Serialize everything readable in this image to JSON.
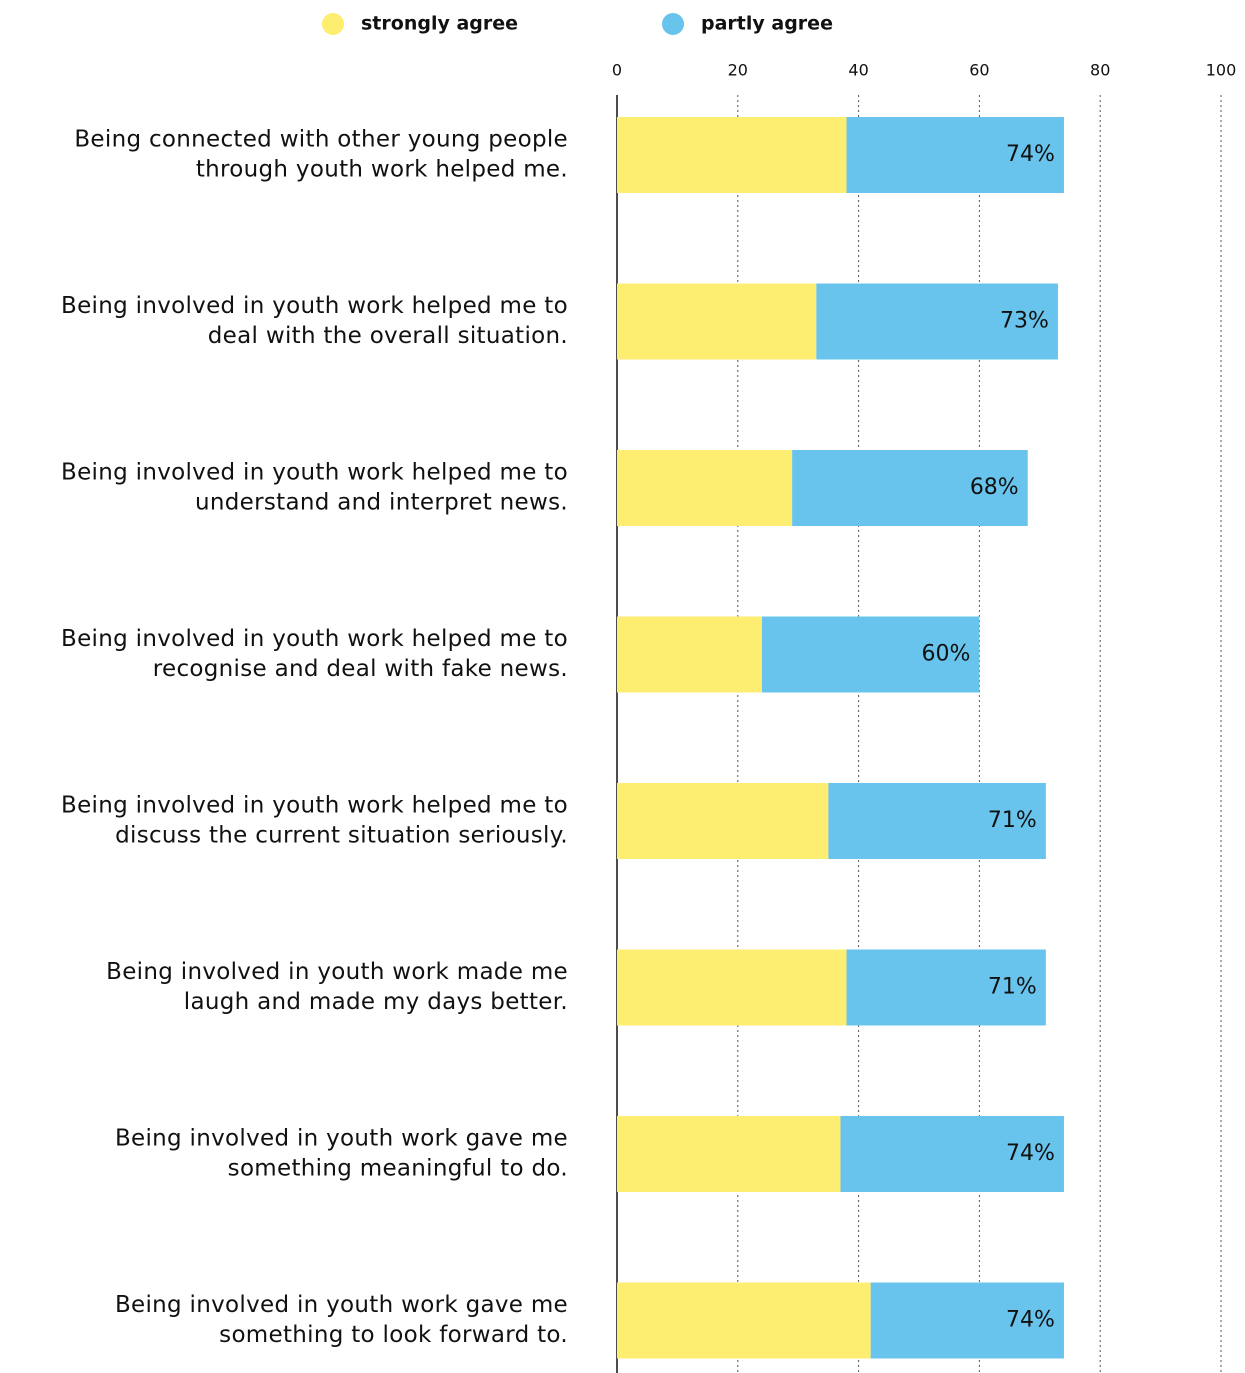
{
  "chart_data": {
    "type": "stacked-barh",
    "categories": [
      [
        "Being connected with other young people",
        "through youth work helped me."
      ],
      [
        "Being involved in youth work helped me to",
        "deal with the overall situation."
      ],
      [
        "Being involved in youth work helped me to",
        "understand and interpret news."
      ],
      [
        "Being involved in youth work helped me to",
        "recognise and deal with fake news."
      ],
      [
        "Being involved in youth work helped me to",
        "discuss the current situation seriously."
      ],
      [
        "Being involved in youth work made me",
        "laugh and made my days better."
      ],
      [
        "Being involved in youth work gave me",
        "something meaningful to do."
      ],
      [
        "Being involved in youth work gave me",
        "something to look forward to."
      ]
    ],
    "series": [
      {
        "name": "strongly agree",
        "color": "#fdee72",
        "values": [
          38,
          33,
          29,
          24,
          35,
          38,
          37,
          42
        ]
      },
      {
        "name": "partly agree",
        "color": "#68c4ec",
        "values": [
          36,
          40,
          39,
          36,
          36,
          33,
          37,
          32
        ]
      }
    ],
    "value_labels": [
      "74%",
      "73%",
      "68%",
      "60%",
      "71%",
      "71%",
      "74%",
      "74%"
    ],
    "xlim": [
      0,
      100
    ],
    "xticks": [
      0,
      20,
      40,
      60,
      80,
      100
    ],
    "grid": true
  }
}
